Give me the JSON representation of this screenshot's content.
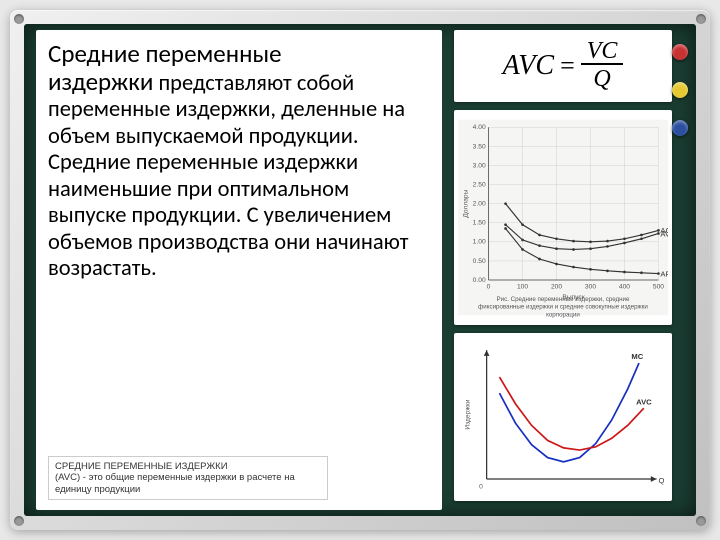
{
  "board": {
    "bg_color": "#1a3d32",
    "frame_color": "#d8d8d8"
  },
  "magnets": [
    {
      "color": "#c83232"
    },
    {
      "color": "#e6c832"
    },
    {
      "color": "#2d4fa0"
    }
  ],
  "text": {
    "title_part1": "Средние переменные",
    "title_part2": "издержки",
    "body_after_title": " представляют собой переменные издержки, деленные на объем выпускаемой продукции. Средние переменные издержки наименьшие при оптимальном выпуске продукции. С увеличением объемов производства они начинают возрастать.",
    "footnote_title": "СРЕДНИЕ ПЕРЕМЕННЫЕ ИЗДЕРЖКИ",
    "footnote_body": "(AVC) - это общие переменные издержки в расчете на единицу продукции"
  },
  "formula": {
    "lhs": "AVC",
    "numerator": "VC",
    "denominator": "Q"
  },
  "chart1": {
    "type": "line",
    "bg": "#f5f5f3",
    "grid_color": "#d0d0d0",
    "axis_color": "#666",
    "x_label": "Выпуск",
    "y_label": "Доллары",
    "caption": "Рис. Средние переменные издержки, средние фиксированные издержки и средние совокупные издержки корпорации",
    "x_ticks": [
      0,
      100,
      200,
      300,
      400,
      500
    ],
    "y_ticks": [
      0,
      0.5,
      1.0,
      1.5,
      2.0,
      2.5,
      3.0,
      3.5,
      4.0
    ],
    "series": [
      {
        "label": "AC",
        "color": "#333",
        "points": [
          [
            50,
            2.0
          ],
          [
            100,
            1.45
          ],
          [
            150,
            1.18
          ],
          [
            200,
            1.08
          ],
          [
            250,
            1.02
          ],
          [
            300,
            1.0
          ],
          [
            350,
            1.02
          ],
          [
            400,
            1.08
          ],
          [
            450,
            1.18
          ],
          [
            500,
            1.3
          ]
        ]
      },
      {
        "label": "AVC",
        "color": "#333",
        "points": [
          [
            50,
            1.45
          ],
          [
            100,
            1.05
          ],
          [
            150,
            0.9
          ],
          [
            200,
            0.82
          ],
          [
            250,
            0.8
          ],
          [
            300,
            0.82
          ],
          [
            350,
            0.88
          ],
          [
            400,
            0.97
          ],
          [
            450,
            1.08
          ],
          [
            500,
            1.22
          ]
        ]
      },
      {
        "label": "AFC",
        "color": "#333",
        "points": [
          [
            50,
            1.35
          ],
          [
            100,
            0.8
          ],
          [
            150,
            0.55
          ],
          [
            200,
            0.42
          ],
          [
            250,
            0.34
          ],
          [
            300,
            0.28
          ],
          [
            350,
            0.24
          ],
          [
            400,
            0.21
          ],
          [
            450,
            0.19
          ],
          [
            500,
            0.17
          ]
        ]
      }
    ]
  },
  "chart2": {
    "type": "line",
    "bg": "#ffffff",
    "axis_color": "#333",
    "x_label": "Q",
    "y_label": "Издержки",
    "series": [
      {
        "label": "MC",
        "color": "#1530c0",
        "points": [
          [
            8,
            80
          ],
          [
            18,
            52
          ],
          [
            28,
            32
          ],
          [
            38,
            20
          ],
          [
            48,
            16
          ],
          [
            58,
            20
          ],
          [
            68,
            33
          ],
          [
            78,
            55
          ],
          [
            88,
            84
          ],
          [
            95,
            108
          ]
        ]
      },
      {
        "label": "AVC",
        "color": "#cc1818",
        "points": [
          [
            8,
            95
          ],
          [
            18,
            70
          ],
          [
            28,
            50
          ],
          [
            38,
            36
          ],
          [
            48,
            29
          ],
          [
            58,
            27
          ],
          [
            68,
            30
          ],
          [
            78,
            38
          ],
          [
            88,
            50
          ],
          [
            98,
            66
          ]
        ]
      }
    ]
  }
}
